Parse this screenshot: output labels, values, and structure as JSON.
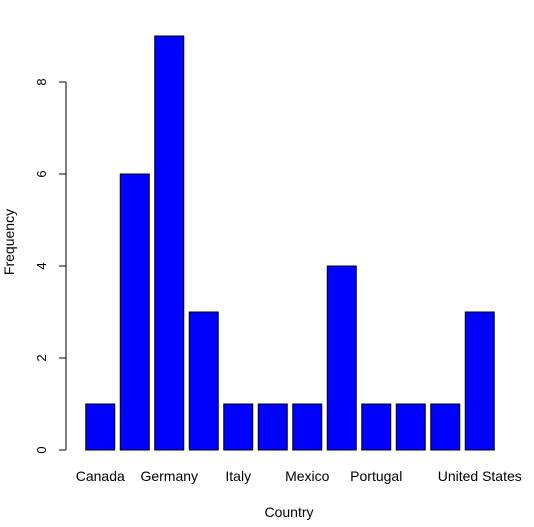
{
  "chart_data": {
    "type": "bar",
    "title": "",
    "xlabel": "Country",
    "ylabel": "Frequency",
    "ylim": [
      0,
      9
    ],
    "yticks": [
      0,
      2,
      4,
      6,
      8
    ],
    "grid": false,
    "bar_color": "#0000ff",
    "bar_border_color": "#000000",
    "categories": [
      "Canada",
      "",
      "Germany",
      "",
      "Italy",
      "",
      "Mexico",
      "",
      "Portugal",
      "",
      "",
      "United States"
    ],
    "values": [
      1,
      6,
      9,
      3,
      1,
      1,
      1,
      4,
      1,
      1,
      1,
      3
    ],
    "shown_category_labels": [
      "Canada",
      "Germany",
      "Italy",
      "Mexico",
      "Portugal",
      "United States"
    ]
  }
}
